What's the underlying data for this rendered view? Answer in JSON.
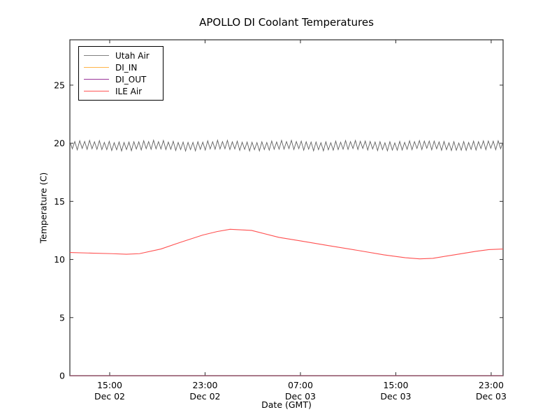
{
  "figure": {
    "title": "APOLLO DI Coolant Temperatures",
    "xlabel": "Date (GMT)",
    "ylabel": "Temperature (C)"
  },
  "legend": {
    "position": "upper left",
    "items": [
      {
        "label": "Utah Air"
      },
      {
        "label": "DI_IN"
      },
      {
        "label": "DI_OUT"
      },
      {
        "label": "ILE Air"
      }
    ]
  },
  "chart_data": {
    "type": "line",
    "title": "APOLLO DI Coolant Temperatures",
    "xlabel": "Date (GMT)",
    "ylabel": "Temperature (C)",
    "grid": false,
    "legend_position": "upper left",
    "x_unit": "hours since Dec 02 00:00 GMT",
    "xlim": [
      11.66,
      48.0
    ],
    "ylim": [
      0,
      28.9
    ],
    "y_ticks": [
      0,
      5,
      10,
      15,
      20,
      25
    ],
    "x_ticks": [
      {
        "t": 15,
        "time": "15:00",
        "date": "Dec 02"
      },
      {
        "t": 23,
        "time": "23:00",
        "date": "Dec 02"
      },
      {
        "t": 31,
        "time": "07:00",
        "date": "Dec 03"
      },
      {
        "t": 39,
        "time": "15:00",
        "date": "Dec 03"
      },
      {
        "t": 47,
        "time": "23:00",
        "date": "Dec 03"
      }
    ],
    "series": [
      {
        "name": "Utah Air",
        "color": "#606060",
        "legend_color": "#808080",
        "style": "zigzag",
        "t_start": 11.66,
        "t_end": 48.0,
        "cycles": 88,
        "base_low": 19.45,
        "base_high": 20.14,
        "jitter": 0.12,
        "description": "rapid sawtooth oscillation between about 19.4 and 20.2 C for the whole span"
      },
      {
        "name": "DI_IN",
        "color": "#FFAE42",
        "legend_color": "#FFB347",
        "style": "line",
        "overlay_opacity": 0.35,
        "points": [
          [
            11.66,
            0.0
          ],
          [
            48.0,
            0.0
          ]
        ],
        "description": "flat at 0 C, drawn along the bottom axis"
      },
      {
        "name": "DI_OUT",
        "color": "#993399",
        "legend_color": "#993399",
        "style": "line",
        "overlay_opacity": 0.45,
        "points": [
          [
            11.66,
            0.0
          ],
          [
            48.0,
            0.0
          ]
        ],
        "description": "flat at 0 C, drawn along the bottom axis"
      },
      {
        "name": "ILE Air",
        "color": "#FF5050",
        "legend_color": "#FF5555",
        "style": "line",
        "overlay_opacity": 1,
        "points": [
          [
            11.66,
            10.6
          ],
          [
            13.4,
            10.55
          ],
          [
            15.2,
            10.5
          ],
          [
            16.4,
            10.45
          ],
          [
            17.5,
            10.5
          ],
          [
            19.3,
            10.9
          ],
          [
            21.0,
            11.5
          ],
          [
            22.8,
            12.1
          ],
          [
            24.0,
            12.4
          ],
          [
            25.1,
            12.6
          ],
          [
            26.9,
            12.5
          ],
          [
            29.2,
            11.9
          ],
          [
            31.0,
            11.6
          ],
          [
            33.3,
            11.2
          ],
          [
            35.7,
            10.8
          ],
          [
            38.0,
            10.4
          ],
          [
            39.8,
            10.15
          ],
          [
            41.0,
            10.05
          ],
          [
            42.1,
            10.1
          ],
          [
            43.9,
            10.4
          ],
          [
            45.7,
            10.7
          ],
          [
            46.8,
            10.85
          ],
          [
            48.0,
            10.9
          ]
        ]
      }
    ]
  },
  "colors": {
    "axis_frame": "#2b2b2b",
    "background": "#ffffff",
    "bottom_axis_blend": "#5a3a44"
  }
}
